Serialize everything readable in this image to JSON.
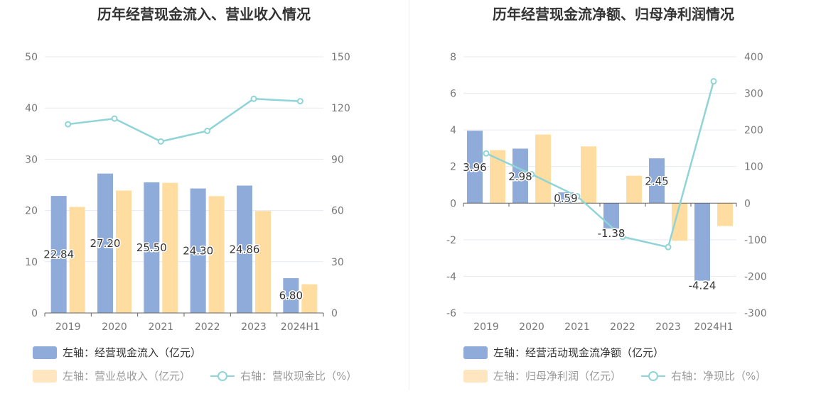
{
  "panels": [
    {
      "title": "历年经营现金流入、营业收入情况",
      "legend": [
        "左轴：经营现金流入（亿元）",
        "左轴：营业总收入（亿元）",
        "右轴：营收现金比（%）"
      ]
    },
    {
      "title": "历年经营现金流净额、归母净利润情况",
      "legend": [
        "左轴：经营活动现金流净额（亿元）",
        "左轴：归母净利润（亿元）",
        "右轴：净现比（%）"
      ]
    }
  ],
  "chart_data": [
    {
      "type": "bar",
      "title": "历年经营现金流入、营业收入情况",
      "categories": [
        "2019",
        "2020",
        "2021",
        "2022",
        "2023",
        "2024H1"
      ],
      "series": [
        {
          "name": "左轴：经营现金流入（亿元）",
          "type": "bar",
          "axis": "left",
          "color": "#8eabd9",
          "values": [
            22.84,
            27.2,
            25.5,
            24.3,
            24.86,
            6.8
          ],
          "labels": [
            "22.84",
            "27.20",
            "25.50",
            "24.30",
            "24.86",
            "6.80"
          ]
        },
        {
          "name": "左轴：营业总收入（亿元）",
          "type": "bar",
          "axis": "left",
          "color": "#ffdc9f",
          "values": [
            20.7,
            23.9,
            25.4,
            22.8,
            19.9,
            5.6
          ]
        },
        {
          "name": "右轴：营收现金比（%）",
          "type": "line",
          "axis": "right",
          "color": "#8fd4d7",
          "values": [
            110.5,
            113.8,
            100.4,
            106.6,
            125.4,
            124.0
          ]
        }
      ],
      "y_left": {
        "min": 0,
        "max": 50,
        "ticks": [
          "0",
          "10",
          "20",
          "30",
          "40",
          "50"
        ]
      },
      "y_right": {
        "min": 0,
        "max": 150,
        "ticks": [
          "0",
          "30",
          "60",
          "90",
          "120",
          "150"
        ]
      },
      "grid": true
    },
    {
      "type": "bar",
      "title": "历年经营现金流净额、归母净利润情况",
      "categories": [
        "2019",
        "2020",
        "2021",
        "2022",
        "2023",
        "2024H1"
      ],
      "series": [
        {
          "name": "左轴：经营活动现金流净额（亿元）",
          "type": "bar",
          "axis": "left",
          "color": "#8eabd9",
          "values": [
            3.96,
            2.98,
            0.59,
            -1.38,
            2.45,
            -4.24
          ],
          "labels": [
            "3.96",
            "2.98",
            "0.59",
            "-1.38",
            "2.45",
            "-4.24"
          ]
        },
        {
          "name": "左轴：归母净利润（亿元）",
          "type": "bar",
          "axis": "left",
          "color": "#ffdc9f",
          "values": [
            2.9,
            3.75,
            3.1,
            1.5,
            -2.05,
            -1.25
          ]
        },
        {
          "name": "右轴：净现比（%）",
          "type": "line",
          "axis": "right",
          "color": "#8fd4d7",
          "values": [
            136,
            79,
            19,
            -92,
            -120,
            333
          ]
        }
      ],
      "y_left": {
        "min": -6,
        "max": 8,
        "ticks": [
          "-6",
          "-4",
          "-2",
          "0",
          "2",
          "4",
          "6",
          "8"
        ]
      },
      "y_right": {
        "min": -300,
        "max": 400,
        "ticks": [
          "-300",
          "-200",
          "-100",
          "0",
          "100",
          "200",
          "300",
          "400"
        ]
      },
      "grid": true
    }
  ]
}
